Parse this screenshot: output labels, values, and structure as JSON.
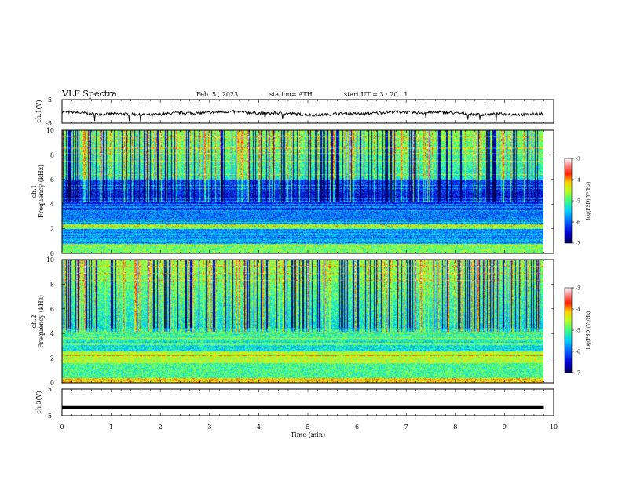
{
  "header": {
    "title": "VLF Spectra",
    "date": "Feb. 5 , 2023",
    "station": "station= ATH",
    "start": "start UT = 3 : 20 : 1"
  },
  "chart_data": [
    {
      "type": "line",
      "ylabel": "ch.1(V)",
      "ylim": [
        -5,
        5
      ],
      "yticks": [
        "5",
        "-5"
      ],
      "xlim": [
        0,
        10
      ],
      "description_series": "noisy waveform around ~ -1 V"
    },
    {
      "type": "heatmap",
      "ylabel_line1": "ch.1",
      "ylabel_line2": "Frequency (kHz)",
      "ylim": [
        0,
        10
      ],
      "yticks": [
        "0",
        "2",
        "4",
        "6",
        "8",
        "10"
      ],
      "xlim": [
        0,
        10
      ],
      "colorbar": {
        "label": "log(PSD)(V²/Hz)",
        "ticks": [
          "-3",
          "-4",
          "-5",
          "-6",
          "-7"
        ],
        "range": [
          -7,
          -3
        ]
      }
    },
    {
      "type": "heatmap",
      "ylabel_line1": "ch.2",
      "ylabel_line2": "Frequency (kHz)",
      "ylim": [
        0,
        10
      ],
      "yticks": [
        "0",
        "2",
        "4",
        "6",
        "8",
        "10"
      ],
      "xlim": [
        0,
        10
      ],
      "colorbar": {
        "label": "log(PSD)(V²/Hz)",
        "ticks": [
          "-3",
          "-4",
          "-5",
          "-6",
          "-7"
        ],
        "range": [
          -7,
          -3
        ]
      }
    },
    {
      "type": "line",
      "ylabel": "ch.3(V)",
      "ylim": [
        -5,
        5
      ],
      "yticks": [
        "5",
        "-5"
      ],
      "xlim": [
        0,
        10
      ],
      "series_value": -2
    }
  ],
  "xaxis": {
    "label": "Time (min)",
    "ticks": [
      "0",
      "1",
      "2",
      "3",
      "4",
      "5",
      "6",
      "7",
      "8",
      "9",
      "10"
    ],
    "data_end": 9.8
  },
  "colors": {
    "spectrum": [
      "#000070",
      "#0000c8",
      "#0050ff",
      "#00a0ff",
      "#00e0ff",
      "#30ff90",
      "#a0ff30",
      "#ffff00",
      "#ff9000",
      "#ff0000",
      "#ffb0b0",
      "#ffffff"
    ]
  }
}
